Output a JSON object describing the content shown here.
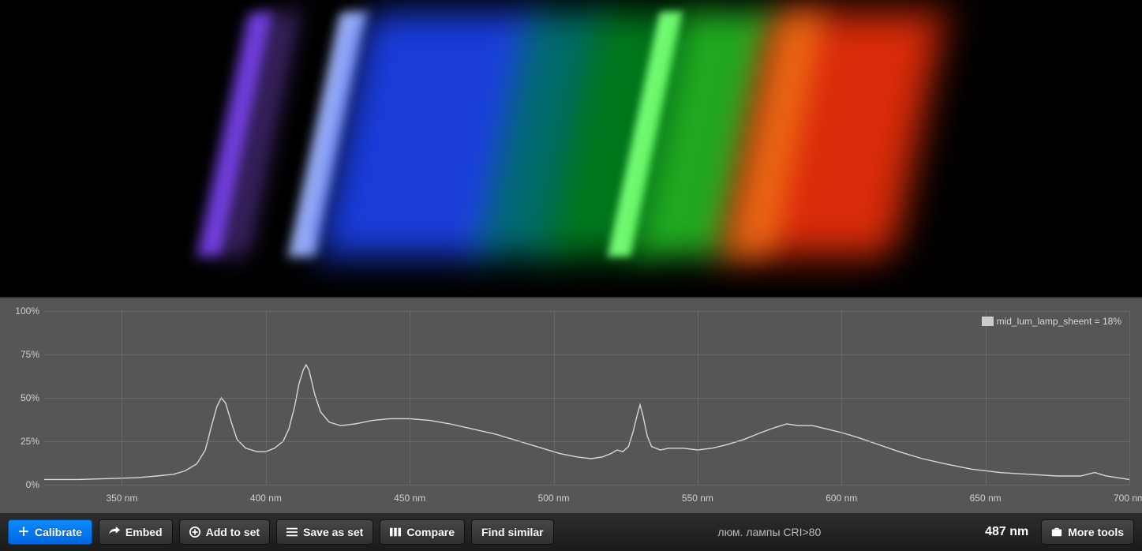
{
  "spectrum_image": {
    "background": "#000000",
    "bands": [
      {
        "left_pct": 19.5,
        "width_pct": 2.2,
        "color": "rgba(130,70,255,0.85)",
        "blur": 8
      },
      {
        "left_pct": 22.0,
        "width_pct": 1.8,
        "color": "rgba(150,90,255,0.5)",
        "blur": 14
      },
      {
        "left_pct": 27.5,
        "width_pct": 2.4,
        "color": "rgba(170,190,255,0.95)",
        "blur": 7
      },
      {
        "left_pct": 30.0,
        "width_pct": 15.0,
        "color": "rgba(30,70,255,0.85)",
        "blur": 22
      },
      {
        "left_pct": 44.0,
        "width_pct": 7.0,
        "color": "rgba(0,190,190,0.55)",
        "blur": 22
      },
      {
        "left_pct": 50.0,
        "width_pct": 9.0,
        "color": "rgba(0,180,40,0.65)",
        "blur": 22
      },
      {
        "left_pct": 55.5,
        "width_pct": 2.0,
        "color": "rgba(120,255,120,0.98)",
        "blur": 5
      },
      {
        "left_pct": 58.0,
        "width_pct": 8.0,
        "color": "rgba(40,210,40,0.8)",
        "blur": 20
      },
      {
        "left_pct": 65.5,
        "width_pct": 15.0,
        "color": "rgba(255,50,10,0.85)",
        "blur": 24
      },
      {
        "left_pct": 66.0,
        "width_pct": 4.0,
        "color": "rgba(255,150,30,0.55)",
        "blur": 18
      }
    ]
  },
  "chart": {
    "type": "line",
    "background_color": "#565656",
    "grid_color": "#7a7a7a",
    "trace_color": "#d8d8d8",
    "trace_width": 1.4,
    "axis_font_size": 12,
    "axis_color": "#d0d0d0",
    "x_unit": "nm",
    "xlim": [
      323,
      700
    ],
    "x_gridlines": [
      350,
      400,
      450,
      500,
      550,
      600,
      650,
      700
    ],
    "x_tick_labels": [
      "350 nm",
      "400 nm",
      "450 nm",
      "500 nm",
      "550 nm",
      "600 nm",
      "650 nm",
      "700 nm"
    ],
    "ylim": [
      0,
      100
    ],
    "y_gridlines": [
      0,
      25,
      50,
      75,
      100
    ],
    "y_tick_labels": [
      "0%",
      "25%",
      "50%",
      "75%",
      "100%"
    ],
    "legend": {
      "label": "mid_lum_lamp_sheent = 18%",
      "swatch": "#cccccc"
    },
    "series": [
      {
        "x": 323,
        "y": 3
      },
      {
        "x": 335,
        "y": 3
      },
      {
        "x": 345,
        "y": 3.5
      },
      {
        "x": 355,
        "y": 4
      },
      {
        "x": 362,
        "y": 5
      },
      {
        "x": 368,
        "y": 6
      },
      {
        "x": 372,
        "y": 8
      },
      {
        "x": 376,
        "y": 12
      },
      {
        "x": 379,
        "y": 20
      },
      {
        "x": 381,
        "y": 33
      },
      {
        "x": 383,
        "y": 45
      },
      {
        "x": 384.5,
        "y": 50
      },
      {
        "x": 386,
        "y": 47
      },
      {
        "x": 388,
        "y": 36
      },
      {
        "x": 390,
        "y": 26
      },
      {
        "x": 393,
        "y": 21
      },
      {
        "x": 397,
        "y": 19
      },
      {
        "x": 400,
        "y": 19
      },
      {
        "x": 403,
        "y": 21
      },
      {
        "x": 406,
        "y": 25
      },
      {
        "x": 408,
        "y": 32
      },
      {
        "x": 410,
        "y": 45
      },
      {
        "x": 411.5,
        "y": 58
      },
      {
        "x": 413,
        "y": 66
      },
      {
        "x": 414,
        "y": 69
      },
      {
        "x": 415,
        "y": 66
      },
      {
        "x": 417,
        "y": 52
      },
      {
        "x": 419,
        "y": 42
      },
      {
        "x": 422,
        "y": 36
      },
      {
        "x": 426,
        "y": 34
      },
      {
        "x": 431,
        "y": 35
      },
      {
        "x": 437,
        "y": 37
      },
      {
        "x": 443,
        "y": 38
      },
      {
        "x": 450,
        "y": 38
      },
      {
        "x": 457,
        "y": 37
      },
      {
        "x": 464,
        "y": 35
      },
      {
        "x": 472,
        "y": 32
      },
      {
        "x": 480,
        "y": 29
      },
      {
        "x": 488,
        "y": 25
      },
      {
        "x": 496,
        "y": 21
      },
      {
        "x": 502,
        "y": 18
      },
      {
        "x": 508,
        "y": 16
      },
      {
        "x": 513,
        "y": 15
      },
      {
        "x": 517,
        "y": 16
      },
      {
        "x": 520,
        "y": 18
      },
      {
        "x": 522,
        "y": 20
      },
      {
        "x": 524,
        "y": 19
      },
      {
        "x": 526,
        "y": 22
      },
      {
        "x": 527.5,
        "y": 30
      },
      {
        "x": 529,
        "y": 40
      },
      {
        "x": 530,
        "y": 46
      },
      {
        "x": 531,
        "y": 40
      },
      {
        "x": 532.5,
        "y": 28
      },
      {
        "x": 534,
        "y": 22
      },
      {
        "x": 537,
        "y": 20
      },
      {
        "x": 540,
        "y": 21
      },
      {
        "x": 545,
        "y": 21
      },
      {
        "x": 550,
        "y": 20
      },
      {
        "x": 555,
        "y": 21
      },
      {
        "x": 560,
        "y": 23
      },
      {
        "x": 566,
        "y": 26
      },
      {
        "x": 572,
        "y": 30
      },
      {
        "x": 577,
        "y": 33
      },
      {
        "x": 581,
        "y": 35
      },
      {
        "x": 585,
        "y": 34
      },
      {
        "x": 590,
        "y": 34
      },
      {
        "x": 595,
        "y": 32
      },
      {
        "x": 600,
        "y": 30
      },
      {
        "x": 606,
        "y": 27
      },
      {
        "x": 613,
        "y": 23
      },
      {
        "x": 620,
        "y": 19
      },
      {
        "x": 628,
        "y": 15
      },
      {
        "x": 636,
        "y": 12
      },
      {
        "x": 645,
        "y": 9
      },
      {
        "x": 655,
        "y": 7
      },
      {
        "x": 665,
        "y": 6
      },
      {
        "x": 675,
        "y": 5
      },
      {
        "x": 683,
        "y": 5
      },
      {
        "x": 688,
        "y": 7
      },
      {
        "x": 692,
        "y": 5
      },
      {
        "x": 700,
        "y": 3
      }
    ]
  },
  "toolbar": {
    "calibrate": "Calibrate",
    "embed": "Embed",
    "add_to_set": "Add to set",
    "save_as_set": "Save as set",
    "compare": "Compare",
    "find_similar": "Find similar",
    "footer_note": "люм. лампы CRI>80",
    "wavelength_readout": "487 nm",
    "more_tools": "More tools"
  },
  "colors": {
    "toolbar_bg_top": "#2d2d2d",
    "toolbar_bg_bottom": "#1b1b1b",
    "btn_bg_top": "#474747",
    "btn_bg_bottom": "#2f2f2f",
    "btn_primary_top": "#0b8bff",
    "btn_primary_bottom": "#0066dd",
    "text": "#ffffff"
  }
}
